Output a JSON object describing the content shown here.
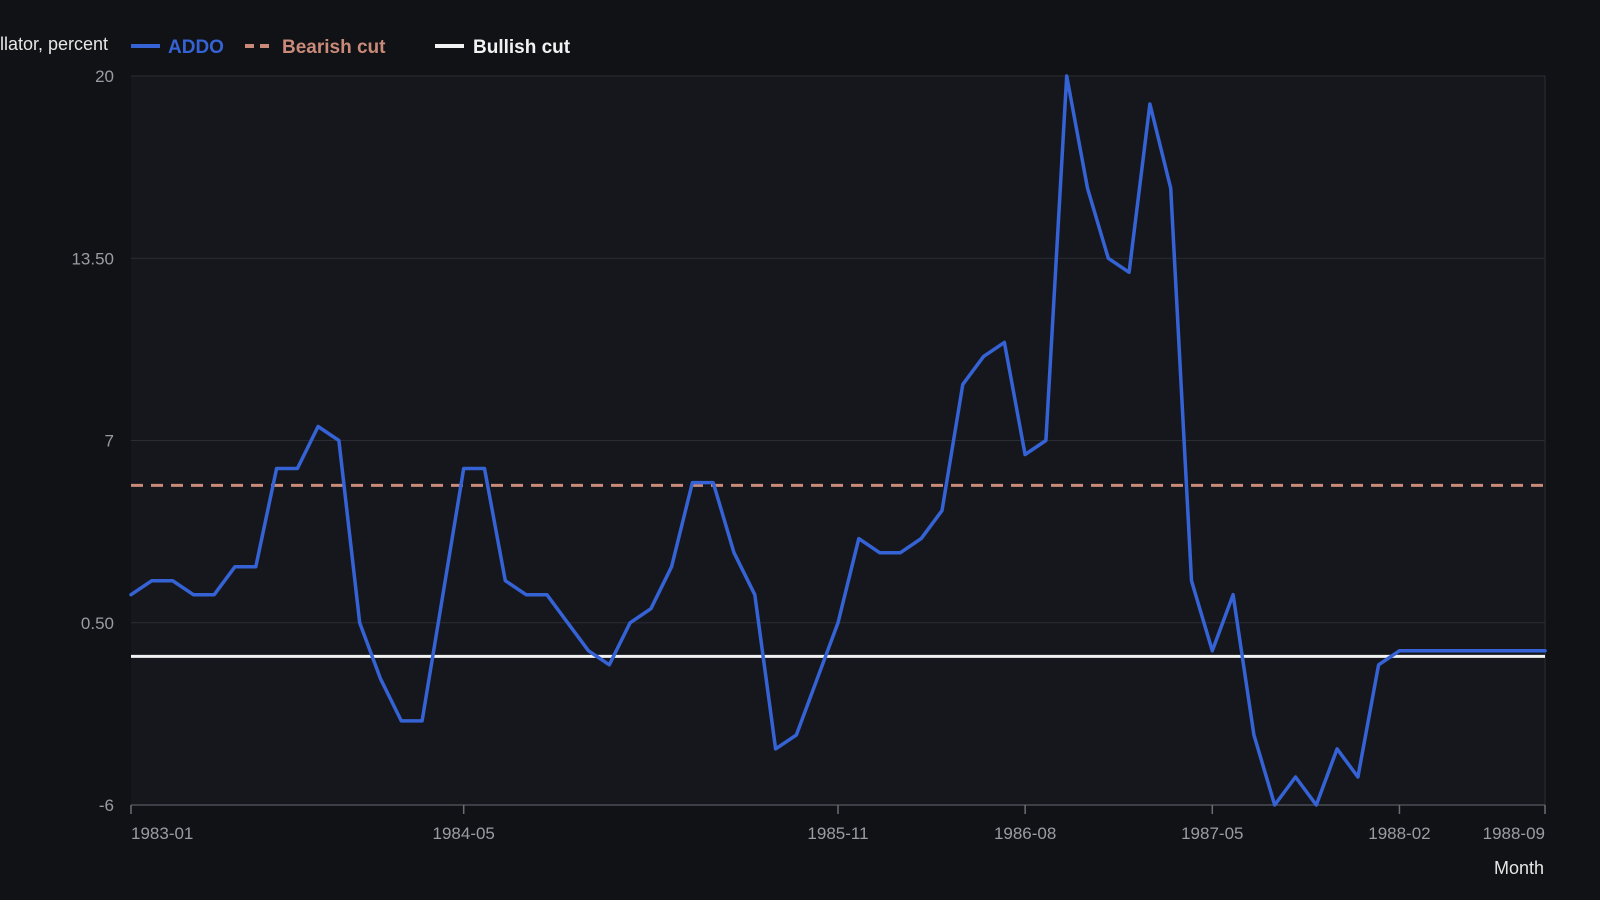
{
  "chart_data": {
    "type": "line",
    "title": "",
    "ylabel": "llator, percent",
    "xlabel": "Month",
    "ylim": [
      -6,
      20
    ],
    "y_ticks": [
      "-6",
      "0.50",
      "7",
      "13.50",
      "20"
    ],
    "y_tick_values": [
      -6,
      0.5,
      7,
      13.5,
      20
    ],
    "x_ticks": [
      "1983-01",
      "1984-05",
      "1985-11",
      "1986-08",
      "1987-05",
      "1988-02",
      "1988-09"
    ],
    "grid": true,
    "legend_position": "top-left",
    "x": [
      "1983-01",
      "1983-02",
      "1983-03",
      "1983-04",
      "1983-05",
      "1983-06",
      "1983-07",
      "1983-08",
      "1983-09",
      "1983-10",
      "1983-11",
      "1983-12",
      "1984-01",
      "1984-02",
      "1984-03",
      "1984-04",
      "1984-05",
      "1984-06",
      "1984-07",
      "1984-08",
      "1984-09",
      "1984-10",
      "1984-11",
      "1984-12",
      "1985-01",
      "1985-02",
      "1985-03",
      "1985-04",
      "1985-05",
      "1985-06",
      "1985-07",
      "1985-08",
      "1985-09",
      "1985-10",
      "1985-11",
      "1985-12",
      "1986-01",
      "1986-02",
      "1986-03",
      "1986-04",
      "1986-05",
      "1986-06",
      "1986-07",
      "1986-08",
      "1986-09",
      "1986-10",
      "1986-11",
      "1986-12",
      "1987-01",
      "1987-02",
      "1987-03",
      "1987-04",
      "1987-05",
      "1987-06",
      "1987-07",
      "1987-08",
      "1987-09",
      "1987-10",
      "1987-11",
      "1987-12",
      "1988-01",
      "1988-02",
      "1988-03",
      "1988-04",
      "1988-05",
      "1988-06",
      "1988-07",
      "1988-08",
      "1988-09"
    ],
    "series": [
      {
        "name": "ADDO",
        "color": "#3563d6",
        "style": "solid",
        "values": [
          1.5,
          2.0,
          2.0,
          1.5,
          1.5,
          2.5,
          2.5,
          6.0,
          6.0,
          7.5,
          7.0,
          0.5,
          -1.5,
          -3.0,
          -3.0,
          1.5,
          6.0,
          6.0,
          2.0,
          1.5,
          1.5,
          0.5,
          -0.5,
          -1.0,
          0.5,
          1.0,
          2.5,
          5.5,
          5.5,
          3.0,
          1.5,
          -4.0,
          -3.5,
          -1.5,
          0.5,
          3.5,
          3.0,
          3.0,
          3.5,
          4.5,
          9.0,
          10.0,
          10.5,
          6.5,
          7.0,
          20.0,
          16.0,
          13.5,
          13.0,
          19.0,
          16.0,
          2.0,
          -0.5,
          1.5,
          -3.5,
          -6.0,
          -5.0,
          -6.0,
          -4.0,
          -5.0,
          -1.0,
          -0.5,
          -0.5,
          -0.5,
          -0.5,
          -0.5,
          -0.5,
          -0.5,
          -0.5
        ]
      },
      {
        "name": "Bearish cut",
        "color": "#c98a7a",
        "style": "dashed",
        "value": 5.4
      },
      {
        "name": "Bullish cut",
        "color": "#f2f2f2",
        "style": "solid",
        "value": -0.7
      }
    ]
  }
}
